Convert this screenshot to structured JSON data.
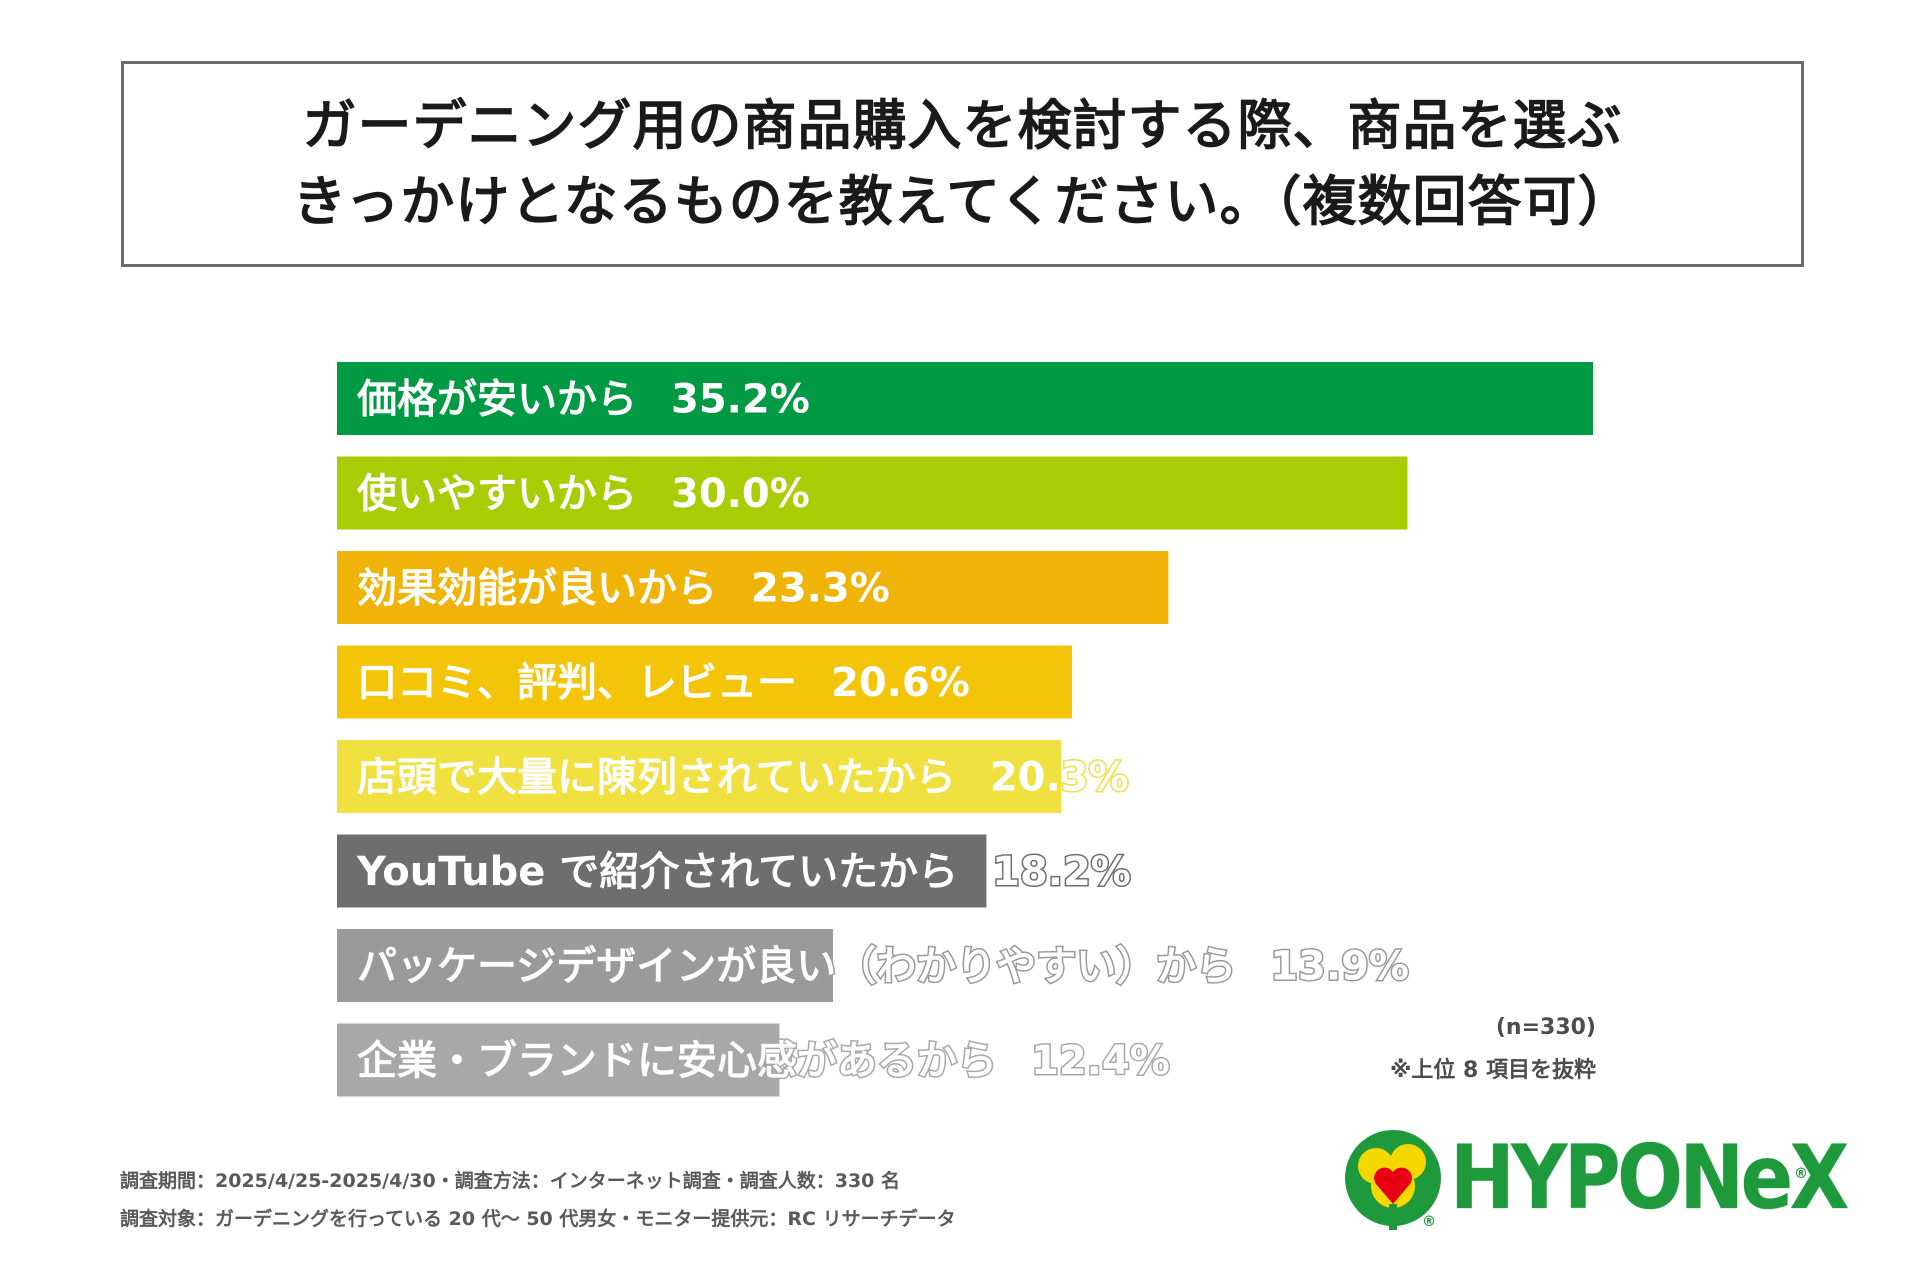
{
  "question": {
    "line1": "ガーデニング用の商品購入を検討する際、商品を選ぶ",
    "line2": "きっかけとなるものを教えてください。（複数回答可）"
  },
  "chart_data": {
    "type": "bar",
    "orientation": "horizontal",
    "title": "ガーデニング用の商品購入を検討する際、商品を選ぶきっかけとなるものを教えてください。（複数回答可）",
    "unit": "%",
    "categories": [
      "価格が安いから",
      "使いやすいから",
      "効果効能が良いから",
      "口コミ、評判、レビュー",
      "店頭で大量に陳列されていたから",
      "YouTube で紹介されていたから",
      "パッケージデザインが良い（わかりやすい）から",
      "企業・ブランドに安心感があるから"
    ],
    "values": [
      35.2,
      30.0,
      23.3,
      20.6,
      20.3,
      18.2,
      13.9,
      12.4
    ],
    "value_labels": [
      "35.2%",
      "30.0%",
      "23.3%",
      "20.6%",
      "20.3%",
      "18.2%",
      "13.9%",
      "12.4%"
    ],
    "colors": [
      "#009a44",
      "#a8cd04",
      "#f0b408",
      "#f4c409",
      "#f0e040",
      "#6e6e6e",
      "#9a9a9a",
      "#a8a8a8"
    ],
    "xlim": [
      0,
      35.2
    ]
  },
  "notes": {
    "sample": "(n=330)",
    "top_items": "※上位 8 項目を抜粋"
  },
  "footer": {
    "line1": "調査期間：2025/4/25-2025/4/30・調査方法：インターネット調査・調査人数：330 名",
    "line2": "調査対象：ガーデニングを行っている 20 代〜 50 代男女・モニター提供元：RC リサーチデータ"
  },
  "logo": {
    "text": "HYPONeX",
    "reg_mark": "®",
    "brand_color": "#1e9a3c"
  }
}
